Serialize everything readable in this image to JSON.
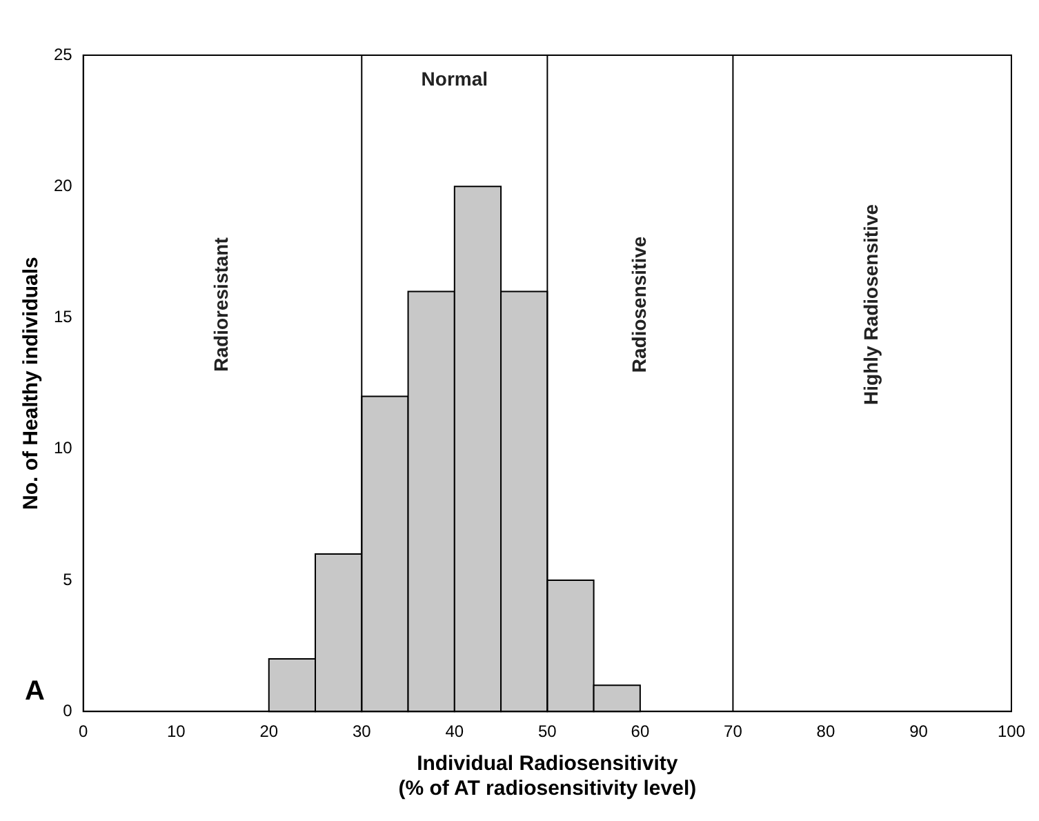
{
  "chart_data": {
    "type": "histogram",
    "bins": [
      20,
      25,
      30,
      35,
      40,
      45,
      50,
      55,
      60
    ],
    "values": [
      2,
      6,
      12,
      16,
      20,
      16,
      5,
      1
    ],
    "color": "#c8c8c8",
    "xlabel": "Individual Radiosensitivity\n(% of AT radiosensitivity level)",
    "ylabel": "No. of Healthy individuals",
    "xlim": [
      0,
      100
    ],
    "xticks": [
      0,
      10,
      20,
      30,
      40,
      50,
      60,
      70,
      80,
      90,
      100
    ],
    "ylim": [
      0,
      25
    ],
    "yticks": [
      0,
      5,
      10,
      15,
      20,
      25
    ],
    "grid": false,
    "legend": false,
    "ref_lines": [
      {
        "axis": "x",
        "value": 30
      },
      {
        "axis": "x",
        "value": 50
      },
      {
        "axis": "x",
        "value": 70
      }
    ],
    "annotations": [
      "Radioresistant",
      "Normal",
      "Radiosensitive",
      "Highly Radiosensitive",
      "A"
    ]
  }
}
